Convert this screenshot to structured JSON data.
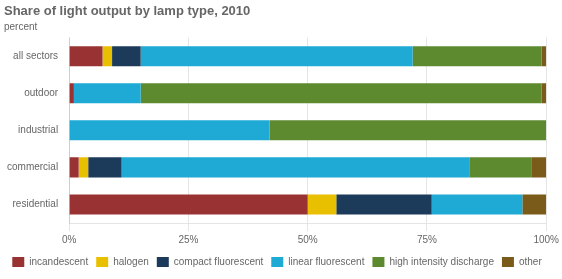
{
  "chart_data": {
    "type": "bar",
    "orientation": "horizontal",
    "stacked": true,
    "title": "Share of light output by lamp type, 2010",
    "subtitle": "percent",
    "categories": [
      "all sectors",
      "outdoor",
      "industrial",
      "commercial",
      "residential"
    ],
    "series": [
      {
        "name": "incandescent",
        "color": "#993333",
        "values": [
          7,
          1,
          0,
          2,
          50
        ]
      },
      {
        "name": "halogen",
        "color": "#E8C000",
        "values": [
          2,
          0,
          0,
          2,
          6
        ]
      },
      {
        "name": "compact fluorescent",
        "color": "#1C3A5A",
        "values": [
          6,
          0,
          0,
          7,
          20
        ]
      },
      {
        "name": "linear fluorescent",
        "color": "#1EAAD4",
        "values": [
          57,
          14,
          42,
          73,
          19
        ]
      },
      {
        "name": "high intensity discharge",
        "color": "#5D8A2F",
        "values": [
          27,
          84,
          58,
          13,
          0
        ]
      },
      {
        "name": "other",
        "color": "#7B5B1A",
        "values": [
          1,
          1,
          0,
          3,
          5
        ]
      }
    ],
    "xlim": [
      0,
      100
    ],
    "xticks": [
      {
        "value": 0,
        "label": "0%"
      },
      {
        "value": 25,
        "label": "25%"
      },
      {
        "value": 50,
        "label": "50%"
      },
      {
        "value": 75,
        "label": "75%"
      },
      {
        "value": 100,
        "label": "100%"
      }
    ],
    "grid": true,
    "legend": "bottom"
  }
}
